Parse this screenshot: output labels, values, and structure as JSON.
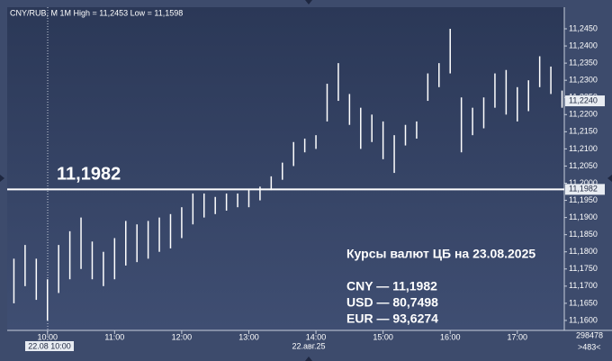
{
  "chart_data": {
    "type": "ohlc-range",
    "title": "CNY/RUB, M 1M High = 11,2453 Low = 11,1598",
    "x": [
      "09:30",
      "09:40",
      "09:50",
      "10:00",
      "10:10",
      "10:20",
      "10:30",
      "10:40",
      "10:50",
      "11:00",
      "11:10",
      "11:20",
      "11:30",
      "11:40",
      "11:50",
      "12:00",
      "12:10",
      "12:20",
      "12:30",
      "12:40",
      "12:50",
      "13:00",
      "13:10",
      "13:20",
      "13:30",
      "13:40",
      "13:50",
      "14:00",
      "14:10",
      "14:20",
      "14:30",
      "14:40",
      "14:50",
      "15:00",
      "15:10",
      "15:20",
      "15:30",
      "15:40",
      "15:50",
      "16:00",
      "16:10",
      "16:20",
      "16:30",
      "16:40",
      "16:50",
      "17:00",
      "17:10",
      "17:20",
      "17:30",
      "17:40"
    ],
    "series": [
      {
        "name": "High",
        "color": "#ffffff",
        "values": [
          11.178,
          11.182,
          11.178,
          11.172,
          11.182,
          11.186,
          11.19,
          11.183,
          11.18,
          11.184,
          11.189,
          11.188,
          11.189,
          11.19,
          11.191,
          11.193,
          11.197,
          11.197,
          11.196,
          11.197,
          11.197,
          11.198,
          11.199,
          11.202,
          11.206,
          11.212,
          11.213,
          11.214,
          11.229,
          11.235,
          11.226,
          11.222,
          11.22,
          11.218,
          11.214,
          11.217,
          11.218,
          11.232,
          11.235,
          11.245,
          11.225,
          11.222,
          11.225,
          11.232,
          11.233,
          11.228,
          11.23,
          11.237,
          11.234,
          11.227
        ]
      },
      {
        "name": "Low",
        "color": "#ffffff",
        "values": [
          11.165,
          11.17,
          11.166,
          11.16,
          11.168,
          11.172,
          11.175,
          11.172,
          11.17,
          11.172,
          11.176,
          11.177,
          11.178,
          11.18,
          11.181,
          11.184,
          11.188,
          11.19,
          11.191,
          11.192,
          11.193,
          11.193,
          11.195,
          11.198,
          11.201,
          11.205,
          11.209,
          11.21,
          11.218,
          11.224,
          11.217,
          11.21,
          11.212,
          11.207,
          11.203,
          11.211,
          11.213,
          11.224,
          11.228,
          11.232,
          11.209,
          11.214,
          11.216,
          11.222,
          11.22,
          11.218,
          11.221,
          11.228,
          11.226,
          11.222
        ]
      }
    ],
    "xlim": [
      "09:24",
      "17:42"
    ],
    "xticks": [
      "10:00",
      "11:00",
      "12:00",
      "13:00",
      "14:00",
      "15:00",
      "16:00",
      "17:00"
    ],
    "ylim": [
      11.1571,
      11.2513
    ],
    "yticks": [
      {
        "value": 11.16,
        "label": "11,1600"
      },
      {
        "value": 11.165,
        "label": "11,1650"
      },
      {
        "value": 11.17,
        "label": "11,1700"
      },
      {
        "value": 11.175,
        "label": "11,1750"
      },
      {
        "value": 11.18,
        "label": "11,1800"
      },
      {
        "value": 11.185,
        "label": "11,1850"
      },
      {
        "value": 11.19,
        "label": "11,1900"
      },
      {
        "value": 11.195,
        "label": "11,1950"
      },
      {
        "value": 11.2,
        "label": "11,2000"
      },
      {
        "value": 11.205,
        "label": "11,2050"
      },
      {
        "value": 11.21,
        "label": "11,2100"
      },
      {
        "value": 11.215,
        "label": "11,2150"
      },
      {
        "value": 11.22,
        "label": "11,2200"
      },
      {
        "value": 11.225,
        "label": "11,2250"
      },
      {
        "value": 11.23,
        "label": "11,2300"
      },
      {
        "value": 11.235,
        "label": "11,2350"
      },
      {
        "value": 11.24,
        "label": "11,2400"
      },
      {
        "value": 11.245,
        "label": "11,2450"
      }
    ],
    "level": {
      "value": 11.1982,
      "label": "11,1982"
    },
    "last_price": {
      "value": 11.224,
      "label": "11,2240"
    },
    "annotations": [
      "Курсы валют ЦБ на 23.08.2025",
      "CNY — 11,1982",
      "USD — 80,7498",
      "EUR — 93,6274"
    ],
    "cursor_label": "22.08 10:00",
    "date_label": "22.авг.25",
    "footer_right": [
      "298478",
      ">483<"
    ]
  }
}
